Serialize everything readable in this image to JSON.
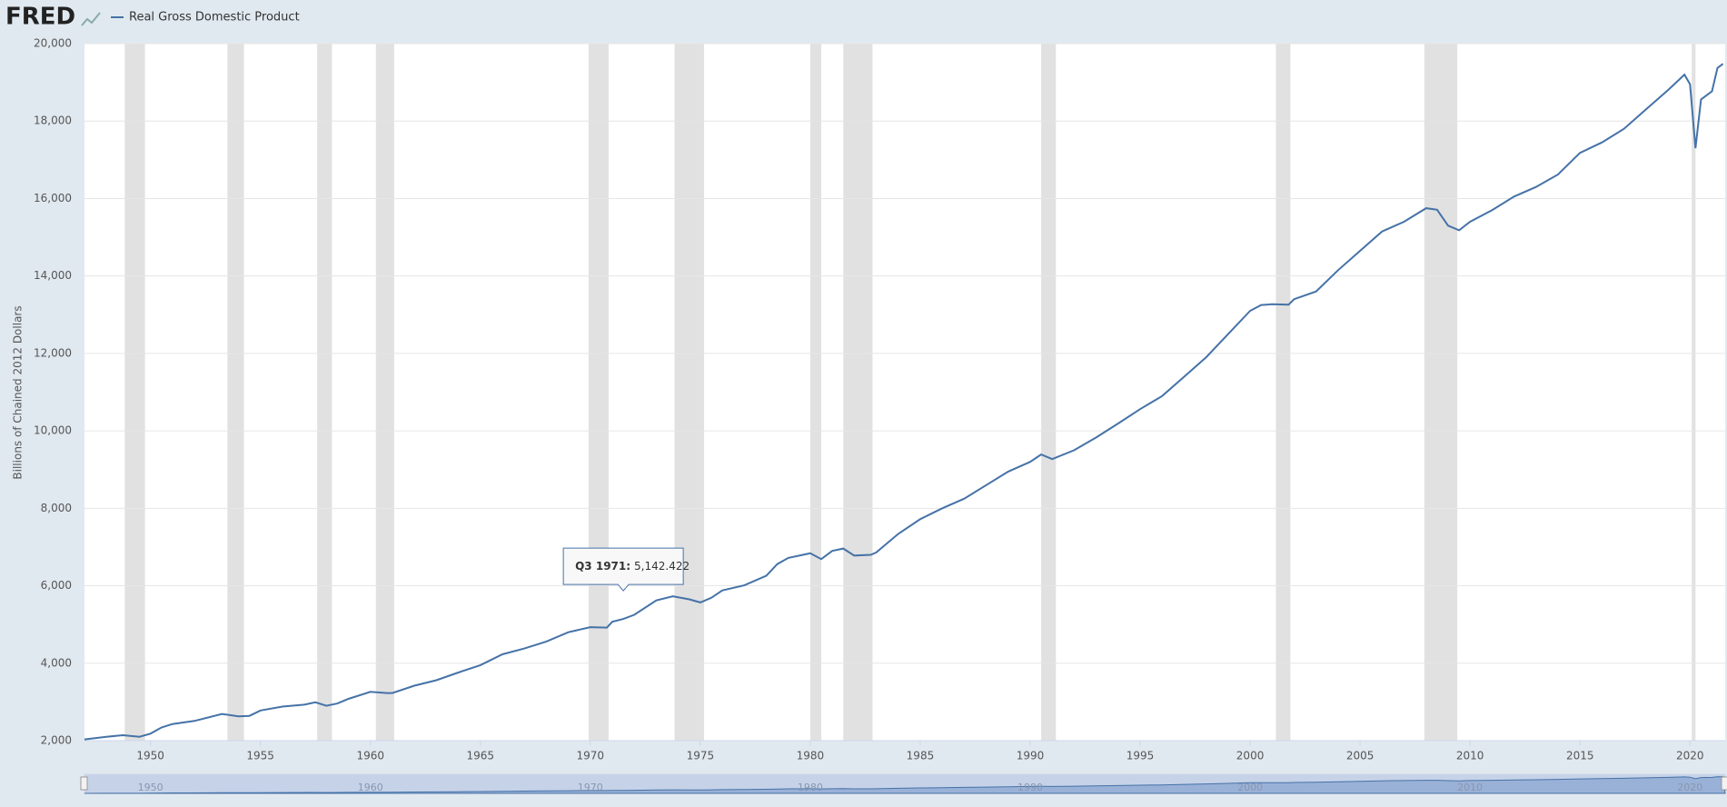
{
  "header": {
    "logo": "FRED",
    "legend": "Real Gross Domestic Product"
  },
  "chart_data": {
    "type": "line",
    "title": null,
    "y_label": "Billions of Chained 2012 Dollars",
    "x": [
      1947,
      1948,
      1948.75,
      1949.5,
      1950,
      1950.5,
      1951,
      1952,
      1953.25,
      1954,
      1954.5,
      1955,
      1956,
      1957,
      1957.5,
      1958,
      1958.5,
      1959,
      1960,
      1960.75,
      1961,
      1962,
      1963,
      1964,
      1965,
      1966,
      1967,
      1968,
      1969,
      1970,
      1970.75,
      1971,
      1971.5,
      1972,
      1973,
      1973.75,
      1974.5,
      1975,
      1975.5,
      1976,
      1977,
      1978,
      1978.5,
      1979,
      1980,
      1980.5,
      1981,
      1981.5,
      1982,
      1982.75,
      1983,
      1984,
      1985,
      1986,
      1987,
      1988,
      1989,
      1990,
      1990.5,
      1991,
      1992,
      1993,
      1994,
      1995,
      1996,
      1997,
      1998,
      1999,
      2000,
      2000.5,
      2001,
      2001.75,
      2002,
      2003,
      2004,
      2005,
      2006,
      2007,
      2008,
      2008.5,
      2009,
      2009.5,
      2010,
      2011,
      2012,
      2013,
      2014,
      2015,
      2016,
      2017,
      2018,
      2019,
      2019.75,
      2020,
      2020.25,
      2020.5,
      2021,
      2021.25,
      2021.5
    ],
    "series": [
      {
        "name": "Real Gross Domestic Product",
        "color": "#4572a7",
        "values": [
          2033,
          2100,
          2140,
          2100,
          2180,
          2340,
          2430,
          2510,
          2690,
          2630,
          2640,
          2780,
          2880,
          2930,
          2990,
          2900,
          2960,
          3080,
          3260,
          3230,
          3230,
          3420,
          3560,
          3760,
          3950,
          4230,
          4380,
          4560,
          4800,
          4930,
          4920,
          5070,
          5142.422,
          5250,
          5620,
          5730,
          5650,
          5570,
          5690,
          5880,
          6010,
          6260,
          6560,
          6720,
          6840,
          6690,
          6900,
          6960,
          6780,
          6800,
          6860,
          7340,
          7720,
          8000,
          8250,
          8600,
          8950,
          9200,
          9390,
          9270,
          9500,
          9830,
          10190,
          10560,
          10900,
          11400,
          11900,
          12500,
          13100,
          13250,
          13270,
          13260,
          13400,
          13600,
          14150,
          14650,
          15150,
          15400,
          15750,
          15710,
          15300,
          15180,
          15400,
          15700,
          16050,
          16300,
          16620,
          17180,
          17450,
          17800,
          18300,
          18800,
          19200,
          18950,
          17300,
          18560,
          18770,
          19370,
          19480
        ]
      }
    ],
    "recessions": [
      [
        1948.83,
        1949.75
      ],
      [
        1953.5,
        1954.25
      ],
      [
        1957.58,
        1958.25
      ],
      [
        1960.25,
        1961.08
      ],
      [
        1969.92,
        1970.83
      ],
      [
        1973.83,
        1975.17
      ],
      [
        1980.0,
        1980.5
      ],
      [
        1981.5,
        1982.83
      ],
      [
        1990.5,
        1991.17
      ],
      [
        2001.17,
        2001.83
      ],
      [
        2007.92,
        2009.42
      ],
      [
        2020.08,
        2020.25
      ]
    ],
    "recession_color": "#e1e1e1",
    "xlim": [
      1947,
      2021.6
    ],
    "xticks": [
      1950,
      1955,
      1960,
      1965,
      1970,
      1975,
      1980,
      1985,
      1990,
      1995,
      2000,
      2005,
      2010,
      2015,
      2020
    ],
    "ylim": [
      2000,
      20000
    ],
    "yticks": [
      {
        "value": 2000,
        "label": "2,000"
      },
      {
        "value": 4000,
        "label": "4,000"
      },
      {
        "value": 6000,
        "label": "6,000"
      },
      {
        "value": 8000,
        "label": "8,000"
      },
      {
        "value": 10000,
        "label": "10,000"
      },
      {
        "value": 12000,
        "label": "12,000"
      },
      {
        "value": 14000,
        "label": "14,000"
      },
      {
        "value": 16000,
        "label": "16,000"
      },
      {
        "value": 18000,
        "label": "18,000"
      },
      {
        "value": 20000,
        "label": "20,000"
      }
    ],
    "grid": true,
    "navigator_ticks": [
      1950,
      1960,
      1970,
      1980,
      1990,
      2000,
      2010,
      2020
    ],
    "tooltip": {
      "label": "Q3 1971:",
      "value": "5,142.422"
    }
  }
}
